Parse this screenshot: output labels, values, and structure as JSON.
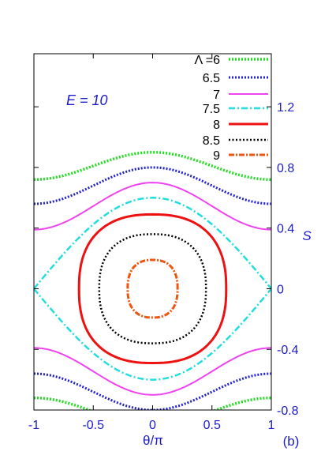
{
  "chart_data": {
    "type": "line",
    "panel_label": "(b)",
    "xlabel": "θ/π",
    "ylabel": "S",
    "annotation": "E = 10",
    "xlim": [
      -1,
      1
    ],
    "ylim": [
      -0.8,
      1.55
    ],
    "x_ticks": [
      "-1",
      "-0.5",
      "0",
      "0.5",
      "1"
    ],
    "y_ticks": [
      "-0.8",
      "-0.4",
      "0",
      "0.4",
      "0.8",
      "1.2"
    ],
    "grid": false,
    "legend_position": "top-right",
    "series": [
      {
        "name": "Λ =6",
        "color": "#22dd22",
        "dash": "2,2",
        "width": 3.5,
        "kind": "open",
        "values": [
          {
            "x": -1,
            "y": 0.72
          },
          {
            "x": 0,
            "y": 0.9
          },
          {
            "x": 1,
            "y": 0.72
          }
        ],
        "mirror": true
      },
      {
        "name": "6.5",
        "color": "#2222cc",
        "dash": "2,2",
        "width": 3,
        "kind": "open",
        "values": [
          {
            "x": -1,
            "y": 0.56
          },
          {
            "x": 0,
            "y": 0.8
          },
          {
            "x": 1,
            "y": 0.56
          }
        ],
        "mirror": true
      },
      {
        "name": "7",
        "color": "#ee44ee",
        "dash": "",
        "width": 2,
        "kind": "open",
        "values": [
          {
            "x": -1,
            "y": 0.39
          },
          {
            "x": 0,
            "y": 0.7
          },
          {
            "x": 1,
            "y": 0.39
          }
        ],
        "mirror": true
      },
      {
        "name": "7.5",
        "color": "#22dddd",
        "dash": "8,3,2,3",
        "width": 2.5,
        "kind": "separatrix",
        "values": [
          {
            "x": -1,
            "y": 0
          },
          {
            "x": 0,
            "y": 0.6
          },
          {
            "x": 1,
            "y": 0
          }
        ],
        "mirror": true
      },
      {
        "name": "8",
        "color": "#ee1111",
        "dash": "",
        "width": 3,
        "kind": "closed",
        "values": [
          {
            "x": -0.62,
            "y": 0
          },
          {
            "x": 0,
            "y": 0.49
          },
          {
            "x": 0.62,
            "y": 0
          },
          {
            "x": 0,
            "y": -0.49
          }
        ]
      },
      {
        "name": "8.5",
        "color": "#000000",
        "dash": "2,2.5",
        "width": 2.5,
        "kind": "closed",
        "values": [
          {
            "x": -0.45,
            "y": 0
          },
          {
            "x": 0,
            "y": 0.36
          },
          {
            "x": 0.45,
            "y": 0
          },
          {
            "x": 0,
            "y": -0.36
          }
        ]
      },
      {
        "name": "9",
        "color": "#ee5511",
        "dash": "7,2,2,2",
        "width": 3,
        "kind": "closed",
        "values": [
          {
            "x": -0.21,
            "y": 0
          },
          {
            "x": 0,
            "y": 0.19
          },
          {
            "x": 0.21,
            "y": 0
          },
          {
            "x": 0,
            "y": -0.19
          }
        ]
      }
    ]
  }
}
